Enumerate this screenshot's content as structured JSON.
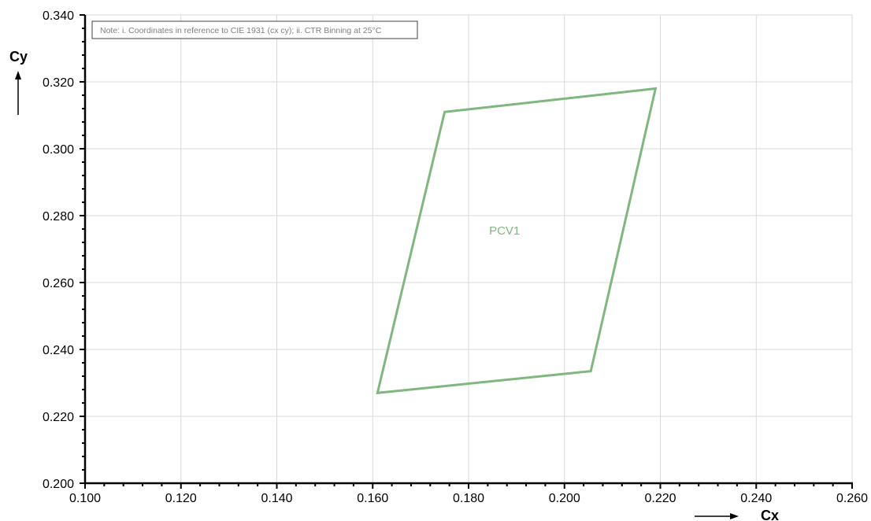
{
  "chart_data": {
    "type": "scatter",
    "title": "",
    "xlabel": "Cx",
    "ylabel": "Cy",
    "xlim": [
      0.1,
      0.26
    ],
    "ylim": [
      0.2,
      0.34
    ],
    "xticks": [
      "0.100",
      "0.120",
      "0.140",
      "0.160",
      "0.180",
      "0.200",
      "0.220",
      "0.240",
      "0.260"
    ],
    "yticks": [
      "0.200",
      "0.220",
      "0.240",
      "0.260",
      "0.280",
      "0.300",
      "0.320",
      "0.340"
    ],
    "grid": true,
    "note": "Note: i. Coordinates in reference to CIE 1931 (cx cy); ii. CTR Binning at 25°C",
    "series": [
      {
        "name": "PCV1",
        "color": "#7fb77f",
        "closed": true,
        "x": [
          0.161,
          0.175,
          0.219,
          0.2055
        ],
        "y": [
          0.227,
          0.311,
          0.318,
          0.2335
        ]
      }
    ],
    "annotations": [
      {
        "text": "PCV1",
        "x": 0.1875,
        "y": 0.2755
      }
    ]
  }
}
